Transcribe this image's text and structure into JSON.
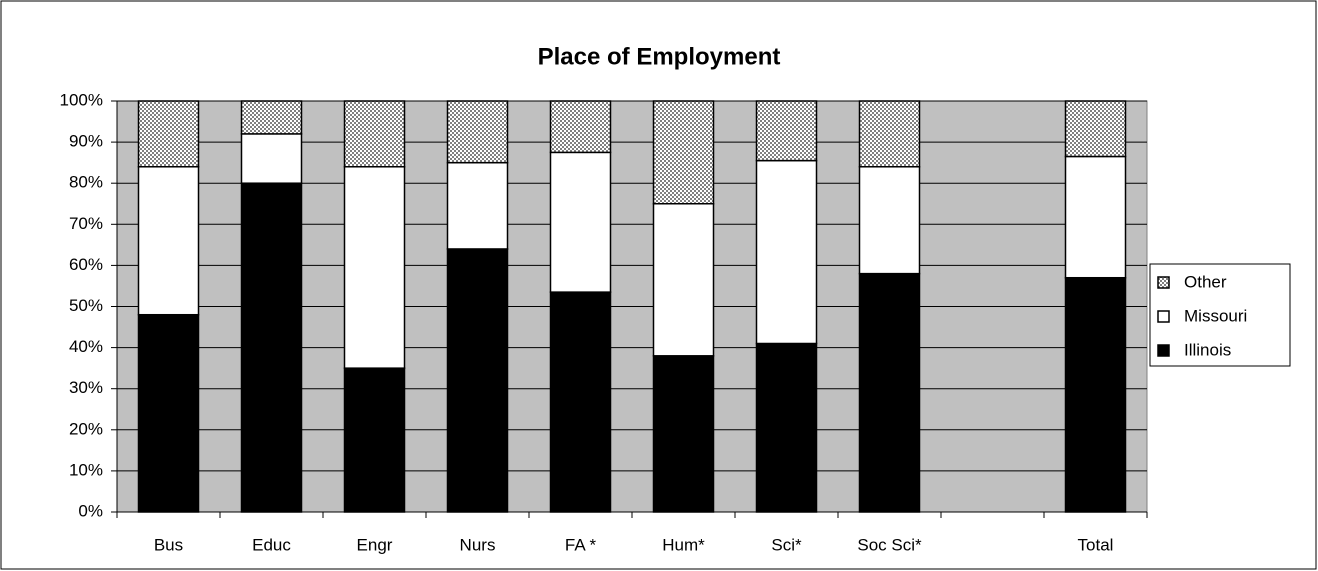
{
  "chart_data": {
    "type": "stacked_bar_100",
    "title": "Place of Employment",
    "categories": [
      "Bus",
      "Educ",
      "Engr",
      "Nurs",
      "FA *",
      "Hum*",
      "Sci*",
      "Soc Sci*",
      null,
      "Total"
    ],
    "series": [
      {
        "name": "Illinois",
        "color": "#000000",
        "values": [
          48,
          80,
          35,
          64,
          53.5,
          38,
          41,
          58,
          null,
          57
        ]
      },
      {
        "name": "Missouri",
        "color": "#ffffff",
        "values": [
          36,
          12,
          49,
          21,
          34,
          37,
          44.5,
          26,
          null,
          29.5
        ]
      },
      {
        "name": "Other",
        "color": "#808080",
        "pattern": "checker",
        "values": [
          16,
          8,
          16,
          15,
          12.5,
          25,
          14.5,
          16,
          null,
          13.5
        ]
      }
    ],
    "ylim": [
      0,
      100
    ],
    "yticks": [
      {
        "value": 0,
        "label": "0%"
      },
      {
        "value": 10,
        "label": "10%"
      },
      {
        "value": 20,
        "label": "20%"
      },
      {
        "value": 30,
        "label": "30%"
      },
      {
        "value": 40,
        "label": "40%"
      },
      {
        "value": 50,
        "label": "50%"
      },
      {
        "value": 60,
        "label": "60%"
      },
      {
        "value": 70,
        "label": "70%"
      },
      {
        "value": 80,
        "label": "80%"
      },
      {
        "value": 90,
        "label": "90%"
      },
      {
        "value": 100,
        "label": "100%"
      }
    ],
    "grid": true,
    "legend": "right",
    "plot_background": "#c0c0c0"
  }
}
